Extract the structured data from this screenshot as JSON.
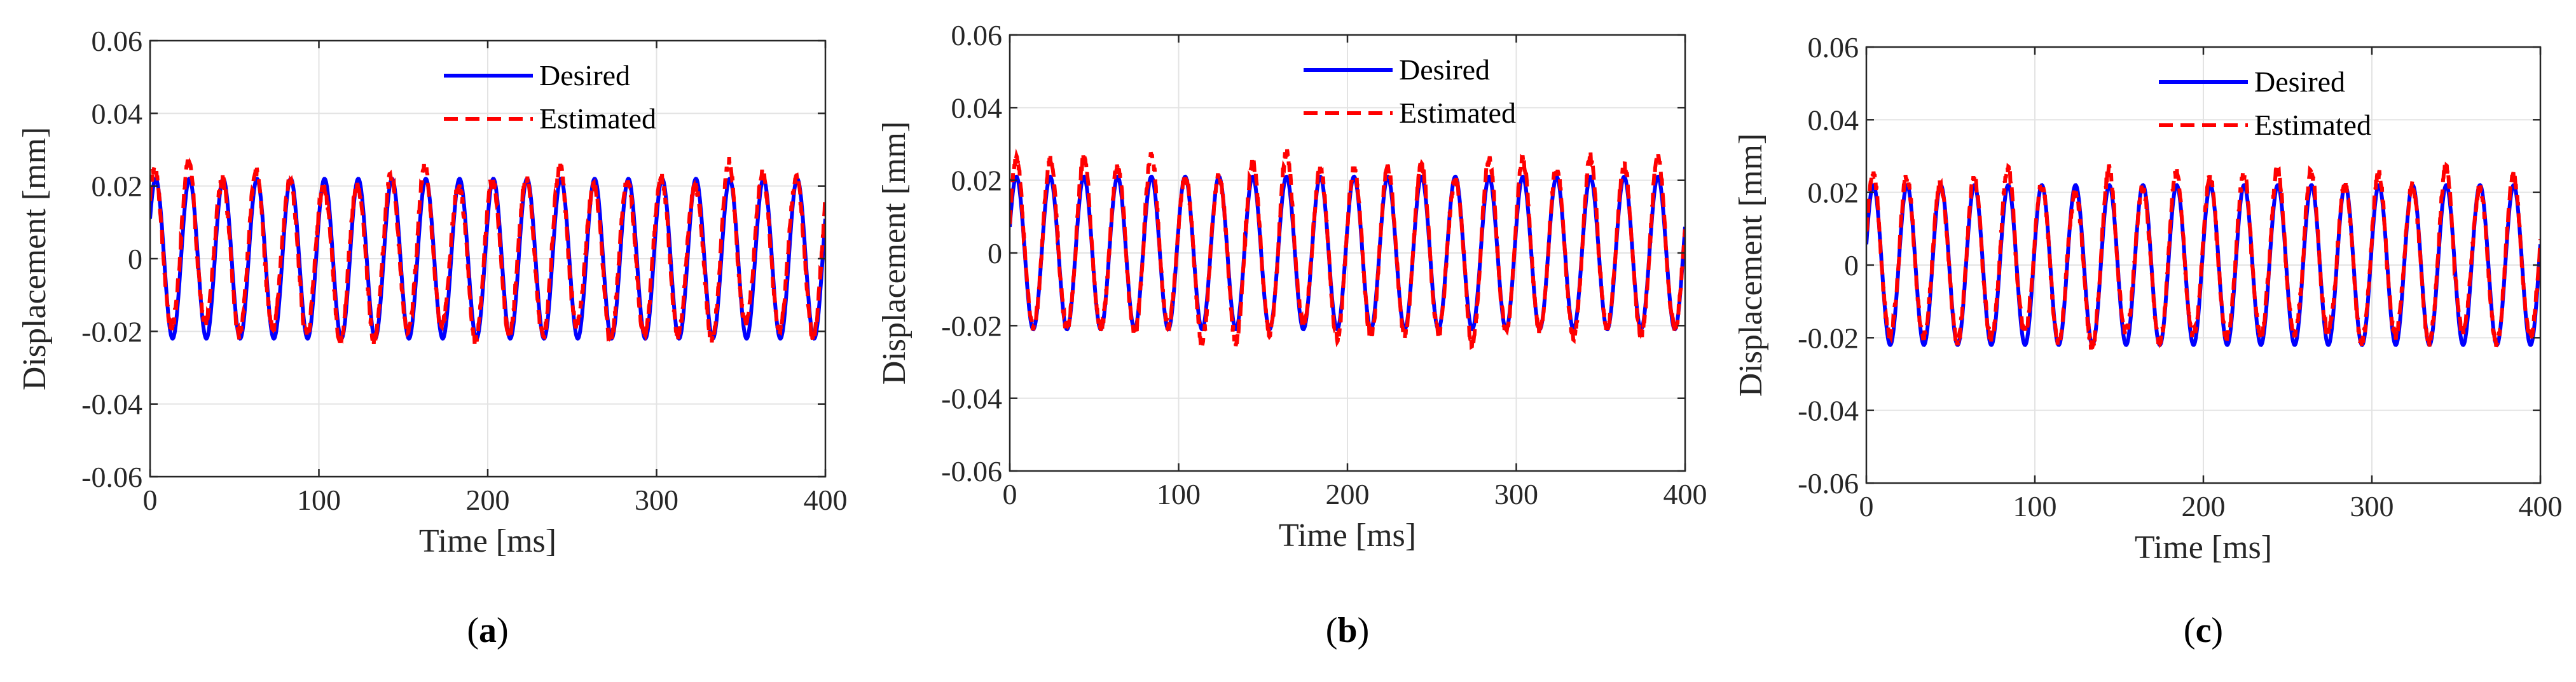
{
  "colors": {
    "desired": "#0000ff",
    "estimated": "#ff0000",
    "grid": "#e3e3e3",
    "axis": "#262626"
  },
  "chart_data": [
    {
      "type": "line",
      "panel_label": "a",
      "xlabel": "Time [ms]",
      "ylabel": "Displacement [mm]",
      "xlim": [
        0,
        400
      ],
      "ylim": [
        -0.06,
        0.06
      ],
      "x_ticks": [
        0,
        100,
        200,
        300,
        400
      ],
      "y_ticks": [
        -0.06,
        -0.04,
        -0.02,
        0,
        0.02,
        0.04,
        0.06
      ],
      "x_tick_labels": [
        "0",
        "100",
        "200",
        "300",
        "400"
      ],
      "y_tick_labels": [
        "-0.06",
        "-0.04",
        "-0.02",
        "0",
        "0.02",
        "0.04",
        "0.06"
      ],
      "grid": true,
      "legend_position": "top-right",
      "series": [
        {
          "name": "Desired",
          "style": "solid",
          "color": "#0000ff",
          "signal": "sine",
          "frequency_hz": 50,
          "amplitude": 0.022,
          "offset": 0,
          "phase_deg": 30
        },
        {
          "name": "Estimated",
          "style": "dashed",
          "color": "#ff0000",
          "signal": "sine",
          "frequency_hz": 50,
          "amplitude": 0.021,
          "offset": 0.001,
          "phase_deg": 40,
          "peak_range": [
            0.019,
            0.027
          ],
          "trough_range": [
            -0.023,
            -0.017
          ]
        }
      ]
    },
    {
      "type": "line",
      "panel_label": "b",
      "xlabel": "Time [ms]",
      "ylabel": "Displacement [mm]",
      "xlim": [
        0,
        400
      ],
      "ylim": [
        -0.06,
        0.06
      ],
      "x_ticks": [
        0,
        100,
        200,
        300,
        400
      ],
      "y_ticks": [
        -0.06,
        -0.04,
        -0.02,
        0,
        0.02,
        0.04,
        0.06
      ],
      "x_tick_labels": [
        "0",
        "100",
        "200",
        "300",
        "400"
      ],
      "y_tick_labels": [
        "-0.06",
        "-0.04",
        "-0.02",
        "0",
        "0.02",
        "0.04",
        "0.06"
      ],
      "grid": true,
      "legend_position": "top-right",
      "series": [
        {
          "name": "Desired",
          "style": "solid",
          "color": "#0000ff",
          "signal": "sine",
          "frequency_hz": 50,
          "amplitude": 0.021,
          "offset": 0,
          "phase_deg": 20
        },
        {
          "name": "Estimated",
          "style": "dashed",
          "color": "#ff0000",
          "signal": "sine",
          "frequency_hz": 50,
          "amplitude": 0.023,
          "offset": 0,
          "phase_deg": 20,
          "peak_range": [
            0.02,
            0.028
          ],
          "trough_range": [
            -0.025,
            -0.019
          ]
        }
      ]
    },
    {
      "type": "line",
      "panel_label": "c",
      "xlabel": "Time [ms]",
      "ylabel": "Displacement [mm]",
      "xlim": [
        0,
        400
      ],
      "ylim": [
        -0.06,
        0.06
      ],
      "x_ticks": [
        0,
        100,
        200,
        300,
        400
      ],
      "y_ticks": [
        -0.06,
        -0.04,
        -0.02,
        0,
        0.02,
        0.04,
        0.06
      ],
      "x_tick_labels": [
        "0",
        "100",
        "200",
        "300",
        "400"
      ],
      "y_tick_labels": [
        "-0.06",
        "-0.04",
        "-0.02",
        "0",
        "0.02",
        "0.04",
        "0.06"
      ],
      "grid": true,
      "legend_position": "top-right",
      "series": [
        {
          "name": "Desired",
          "style": "solid",
          "color": "#0000ff",
          "signal": "sine",
          "frequency_hz": 50,
          "amplitude": 0.022,
          "offset": 0,
          "phase_deg": 15
        },
        {
          "name": "Estimated",
          "style": "dashed",
          "color": "#ff0000",
          "signal": "sine",
          "frequency_hz": 50,
          "amplitude": 0.021,
          "offset": 0,
          "phase_deg": 18,
          "peak_range": [
            0.019,
            0.027
          ],
          "trough_range": [
            -0.023,
            -0.018
          ]
        }
      ]
    }
  ]
}
